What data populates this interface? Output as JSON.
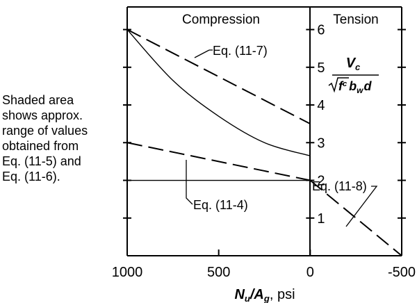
{
  "chart_data": {
    "type": "line",
    "x_axis": {
      "label_main": "N",
      "label_sub": "u",
      "label_slash": "/A",
      "label_sub2": "g",
      "label_unit": ", psi",
      "range": [
        1000,
        -500
      ],
      "ticks": [
        1000,
        500,
        0,
        -500
      ],
      "tick_labels": [
        "1000",
        "500",
        "0",
        "-500"
      ]
    },
    "y_axis": {
      "range": [
        0,
        6.6
      ],
      "ticks": [
        1,
        2,
        3,
        4,
        5,
        6
      ],
      "tick_labels": [
        "1",
        "2",
        "3",
        "4",
        "5",
        "6"
      ],
      "label_numerator": "V",
      "label_numerator_sub": "c",
      "label_sqrt": "f",
      "label_sqrt_sub": "c",
      "label_b": "b",
      "label_b_sub": "w",
      "label_d": "d"
    },
    "regions": [
      {
        "label": "Compression"
      },
      {
        "label": "Tension"
      }
    ],
    "series": [
      {
        "x": [
          1000,
          0
        ],
        "y": [
          6.0,
          3.5
        ],
        "style": "dashed"
      },
      {
        "x": [
          1000,
          750,
          500,
          250,
          0
        ],
        "y": [
          6.0,
          4.65,
          3.7,
          3.0,
          2.65
        ],
        "style": "solid"
      },
      {
        "x": [
          1000,
          0
        ],
        "y": [
          3.0,
          2.0
        ],
        "style": "dashed"
      },
      {
        "x": [
          1000,
          0
        ],
        "y": [
          2.0,
          2.0
        ],
        "style": "solid"
      },
      {
        "x": [
          0,
          -500
        ],
        "y": [
          2.0,
          0.0
        ],
        "style": "dashed"
      }
    ],
    "annotations": [
      {
        "text": "Eq. (11-7)"
      },
      {
        "text": "Eq. (11-4)"
      },
      {
        "text": "Eq. (11-8)"
      }
    ],
    "grid": false
  },
  "note": {
    "lines": [
      "Shaded area",
      "shows approx.",
      "range of values",
      "obtained from",
      "Eq. (11-5) and",
      "Eq. (11-6)."
    ]
  }
}
